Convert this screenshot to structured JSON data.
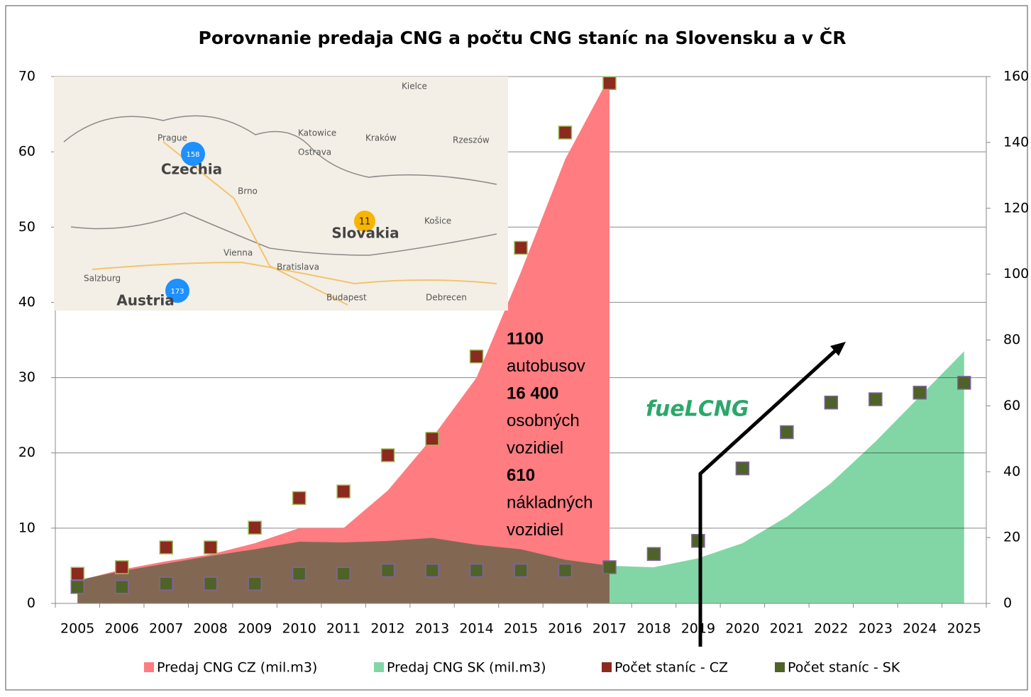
{
  "chart_data": {
    "type": "area",
    "title": "Porovnanie predaja CNG a počtu CNG staníc na Slovensku a v ČR",
    "categories": [
      "2005",
      "2006",
      "2007",
      "2008",
      "2009",
      "2010",
      "2011",
      "2012",
      "2013",
      "2014",
      "2015",
      "2016",
      "2017",
      "2018",
      "2019",
      "2020",
      "2021",
      "2022",
      "2023",
      "2024",
      "2025"
    ],
    "series": [
      {
        "name": "Predaj CNG CZ (mil.m3)",
        "type": "area",
        "color": "#ff7c80",
        "values": [
          3,
          4.5,
          5.6,
          6.5,
          8,
          10,
          10,
          15,
          22,
          30,
          44,
          59,
          70,
          null,
          null,
          null,
          null,
          null,
          null,
          null,
          null
        ]
      },
      {
        "name": "Predaj CNG SK (mil.m3)",
        "type": "area",
        "color": "#82d6a6",
        "values": [
          3.1,
          4.3,
          5.3,
          6.3,
          7.2,
          8.2,
          8.1,
          8.3,
          8.7,
          7.8,
          7.2,
          5.8,
          5,
          4.8,
          6,
          8,
          11.5,
          16,
          21.5,
          27.5,
          33.5
        ]
      },
      {
        "name": "Počet staníc - CZ",
        "type": "scatter",
        "axis": "y2",
        "color": "#8b2a1f",
        "values": [
          9,
          11,
          17,
          17,
          23,
          32,
          34,
          45,
          50,
          75,
          108,
          143,
          158,
          null,
          null,
          null,
          null,
          null,
          null,
          null,
          null
        ]
      },
      {
        "name": "Počet staníc - SK",
        "type": "scatter",
        "axis": "y2",
        "color": "#4f6228",
        "values": [
          5,
          5,
          6,
          6,
          6,
          9,
          9,
          10,
          10,
          10,
          10,
          10,
          11,
          15,
          19,
          41,
          52,
          61,
          62,
          64,
          67
        ]
      }
    ],
    "ylim": [
      0,
      70
    ],
    "yticks": [
      0,
      10,
      20,
      30,
      40,
      50,
      60,
      70
    ],
    "y2lim": [
      0,
      160
    ],
    "y2ticks": [
      0,
      20,
      40,
      60,
      80,
      100,
      120,
      140,
      160
    ],
    "grid": true,
    "annotations": [
      "1100",
      "autobusov",
      "16 400",
      "osobných",
      "vozidiel",
      "610",
      "nákladných",
      "vozidiel"
    ],
    "logo": "fueLCNG"
  },
  "inset_map": {
    "labels": [
      "Czechia",
      "Slovakia",
      "Austria",
      "Prague",
      "Brno",
      "Vienna",
      "Bratislava",
      "Budapest",
      "Kraków",
      "Katowice",
      "Ostrava",
      "Košice",
      "Kielce",
      "Rzeszów",
      "Debrecen",
      "Salzburg",
      "11",
      "158",
      "173"
    ]
  }
}
